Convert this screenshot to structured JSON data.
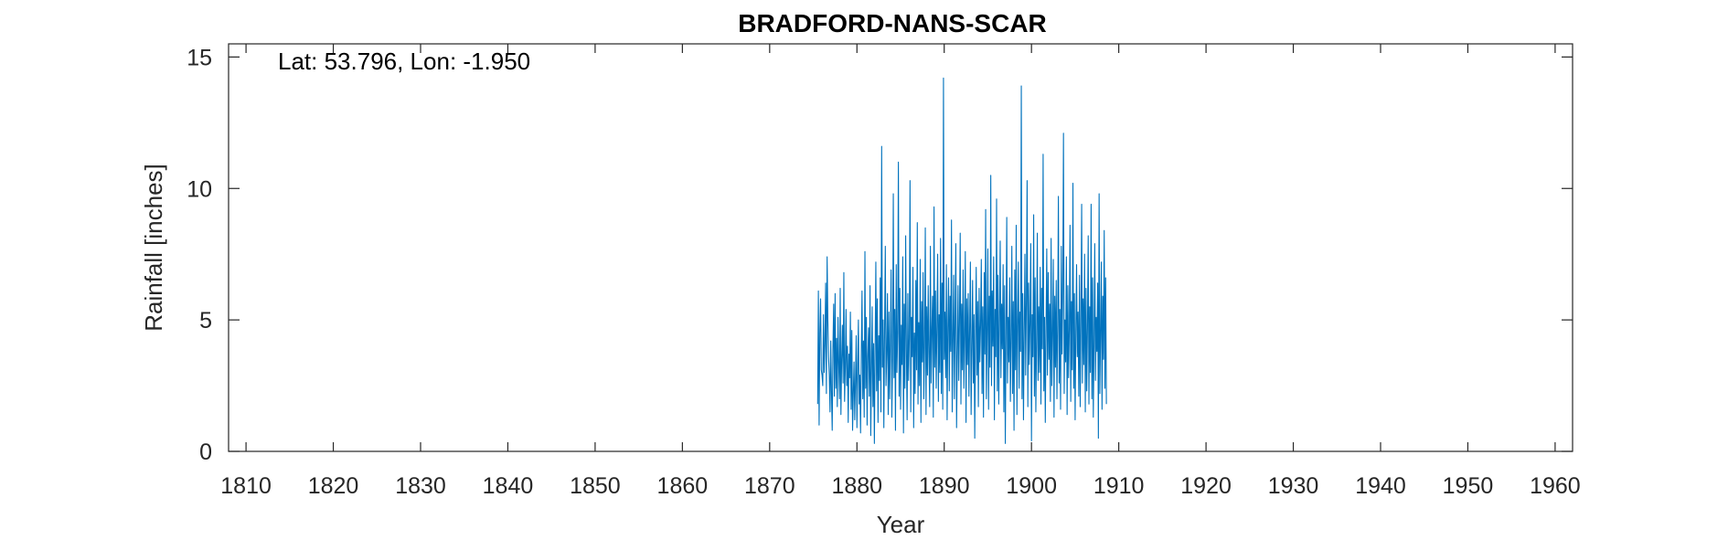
{
  "chart_data": {
    "type": "line",
    "title": "BRADFORD-NANS-SCAR",
    "annotation": "Lat: 53.796, Lon: -1.950",
    "xlabel": "Year",
    "ylabel": "Rainfall [inches]",
    "xlim": [
      1808,
      1962
    ],
    "ylim": [
      0,
      15.5
    ],
    "xticks": [
      1810,
      1820,
      1830,
      1840,
      1850,
      1860,
      1870,
      1880,
      1890,
      1900,
      1910,
      1920,
      1930,
      1940,
      1950,
      1960
    ],
    "yticks": [
      0,
      5,
      10,
      15
    ],
    "grid": false,
    "series_color": "#0072BD",
    "series": [
      {
        "x_start": 1875.5,
        "x_step": 0.0833333,
        "values": [
          1.8,
          6.1,
          1.0,
          4.5,
          5.8,
          3.1,
          2.9,
          2.5,
          5.2,
          3.0,
          4.1,
          6.4,
          2.2,
          7.4,
          5.0,
          3.6,
          2.9,
          1.5,
          4.2,
          2.3,
          0.8,
          3.9,
          5.6,
          2.1,
          6.0,
          2.4,
          4.3,
          1.7,
          5.1,
          3.3,
          2.0,
          6.2,
          1.4,
          3.5,
          4.8,
          2.6,
          6.8,
          1.9,
          3.2,
          5.4,
          2.5,
          4.0,
          1.1,
          3.7,
          2.8,
          5.3,
          1.6,
          4.6,
          0.8,
          2.2,
          3.4,
          1.2,
          2.7,
          4.4,
          0.9,
          3.1,
          5.0,
          1.8,
          2.9,
          0.7,
          3.8,
          6.1,
          2.0,
          4.2,
          1.3,
          7.6,
          2.4,
          5.1,
          1.0,
          3.6,
          4.7,
          2.1,
          6.3,
          0.6,
          3.0,
          5.5,
          1.7,
          4.1,
          0.3,
          3.9,
          7.2,
          2.3,
          5.8,
          1.1,
          4.4,
          2.7,
          6.6,
          1.5,
          11.6,
          3.2,
          5.0,
          0.9,
          4.6,
          7.8,
          2.5,
          3.7,
          6.0,
          1.4,
          5.3,
          2.0,
          4.2,
          6.9,
          1.3,
          3.5,
          9.8,
          2.8,
          5.4,
          0.8,
          7.1,
          3.0,
          4.5,
          11.0,
          2.1,
          6.2,
          1.6,
          4.8,
          3.3,
          7.4,
          0.7,
          5.6,
          2.4,
          8.2,
          3.9,
          1.2,
          6.0,
          2.7,
          4.3,
          10.3,
          1.5,
          5.1,
          3.6,
          7.0,
          0.9,
          4.5,
          2.2,
          6.5,
          3.1,
          8.7,
          1.8,
          4.9,
          2.5,
          7.3,
          1.1,
          5.7,
          3.4,
          6.8,
          2.0,
          4.0,
          8.5,
          1.4,
          5.5,
          2.9,
          6.3,
          3.7,
          1.7,
          7.8,
          2.6,
          4.6,
          5.9,
          1.3,
          9.3,
          3.2,
          6.1,
          2.4,
          4.8,
          7.5,
          1.9,
          5.2,
          3.0,
          8.1,
          2.2,
          6.4,
          1.6,
          14.2,
          3.5,
          5.3,
          2.8,
          7.1,
          1.2,
          4.7,
          6.6,
          2.3,
          5.9,
          3.8,
          8.8,
          1.5,
          4.2,
          6.7,
          2.0,
          5.1,
          7.9,
          0.9,
          3.6,
          6.3,
          2.7,
          4.9,
          8.3,
          1.8,
          5.6,
          3.1,
          6.9,
          2.4,
          4.4,
          7.6,
          1.1,
          5.8,
          3.3,
          6.0,
          2.1,
          4.7,
          7.2,
          1.4,
          3.9,
          6.5,
          2.6,
          5.2,
          0.5,
          4.3,
          7.0,
          2.9,
          5.7,
          1.7,
          6.2,
          3.4,
          4.8,
          7.3,
          2.2,
          5.5,
          1.3,
          6.8,
          3.7,
          9.2,
          2.0,
          4.6,
          7.7,
          1.6,
          5.9,
          3.2,
          10.5,
          2.5,
          6.1,
          4.0,
          7.4,
          1.2,
          5.4,
          3.6,
          9.6,
          2.3,
          6.7,
          1.8,
          4.9,
          8.0,
          2.8,
          5.6,
          3.9,
          7.1,
          1.5,
          6.3,
          0.3,
          4.5,
          8.9,
          2.6,
          5.1,
          3.4,
          6.6,
          1.9,
          4.3,
          7.8,
          2.2,
          5.7,
          0.8,
          6.9,
          3.1,
          8.6,
          1.4,
          4.8,
          7.2,
          2.4,
          5.3,
          3.8,
          13.9,
          2.0,
          6.0,
          1.2,
          4.6,
          7.5,
          2.9,
          5.8,
          10.3,
          1.7,
          6.4,
          3.3,
          4.9,
          7.9,
          0.4,
          5.2,
          3.6,
          9.0,
          2.1,
          6.6,
          1.5,
          4.2,
          8.3,
          2.7,
          5.5,
          3.0,
          7.0,
          1.8,
          6.2,
          3.9,
          11.3,
          2.3,
          5.1,
          1.1,
          4.7,
          7.7,
          2.9,
          6.8,
          3.5,
          5.6,
          1.9,
          8.1,
          2.5,
          4.4,
          7.3,
          1.3,
          5.9,
          3.2,
          6.5,
          2.0,
          4.8,
          9.7,
          2.6,
          5.4,
          1.6,
          7.8,
          3.7,
          6.1,
          12.1,
          2.2,
          5.0,
          3.4,
          7.4,
          1.4,
          6.3,
          2.8,
          4.6,
          8.6,
          1.9,
          5.7,
          3.1,
          10.2,
          2.4,
          6.0,
          1.2,
          4.5,
          7.1,
          3.6,
          5.3,
          2.1,
          6.7,
          1.7,
          4.9,
          9.4,
          2.6,
          5.8,
          3.3,
          7.5,
          1.5,
          6.2,
          2.3,
          4.7,
          8.2,
          1.8,
          5.5,
          3.0,
          9.4,
          2.0,
          6.6,
          1.3,
          4.1,
          7.9,
          2.7,
          5.1,
          3.8,
          6.4,
          0.5,
          9.8,
          2.2,
          4.4,
          7.2,
          1.6,
          5.9,
          3.5,
          8.4,
          2.4,
          6.6,
          1.8
        ]
      }
    ]
  }
}
